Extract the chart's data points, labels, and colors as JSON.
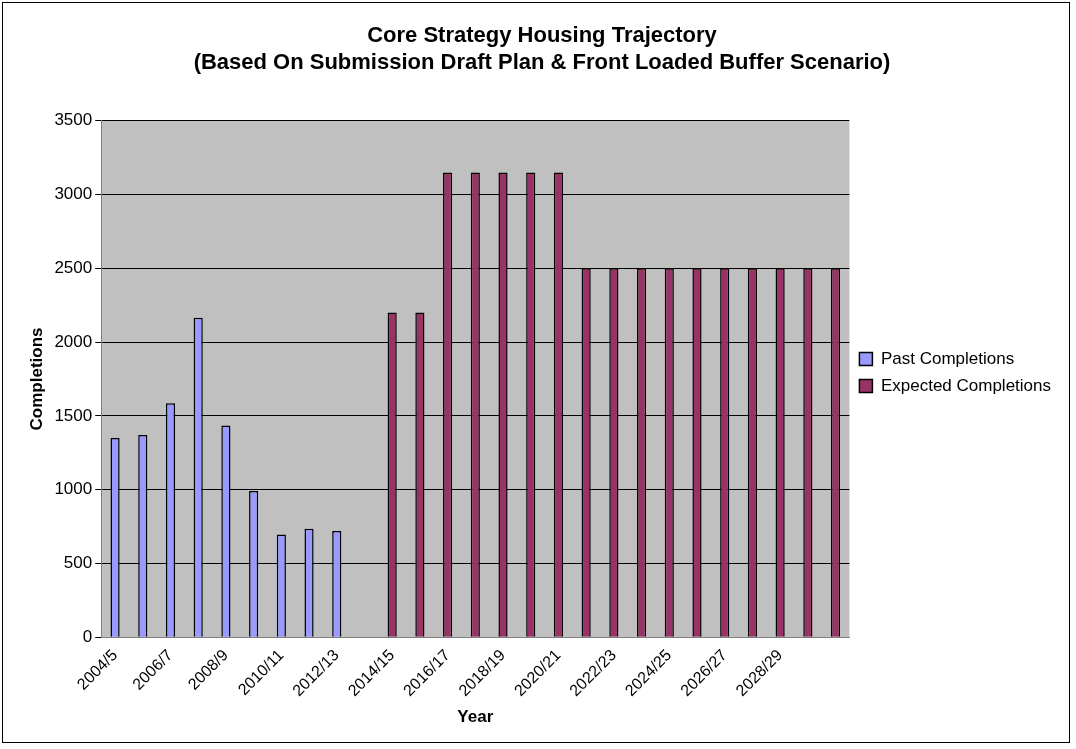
{
  "chart_data": {
    "type": "bar",
    "title": "Core Strategy Housing Trajectory\n(Based On Submission Draft Plan & Front Loaded Buffer Scenario)",
    "xlabel": "Year",
    "ylabel": "Completions",
    "categories": [
      "2004/5",
      null,
      "2006/7",
      null,
      "2008/9",
      null,
      "2010/11",
      null,
      "2012/13",
      null,
      "2014/15",
      null,
      "2016/17",
      null,
      "2018/19",
      null,
      "2020/21",
      null,
      "2022/23",
      null,
      "2024/25",
      null,
      "2026/27",
      null,
      "2028/29",
      null,
      null
    ],
    "series": [
      {
        "name": "Past Completions",
        "color": "#9999ff",
        "values": [
          1350,
          1370,
          1585,
          2165,
          1435,
          990,
          695,
          735,
          720,
          null,
          null,
          null,
          null,
          null,
          null,
          null,
          null,
          null,
          null,
          null,
          null,
          null,
          null,
          null,
          null,
          null,
          null
        ]
      },
      {
        "name": "Expected Completions",
        "color": "#993366",
        "values": [
          null,
          null,
          null,
          null,
          null,
          null,
          null,
          null,
          null,
          null,
          2200,
          2200,
          3150,
          3150,
          3150,
          3150,
          3150,
          2500,
          2500,
          2500,
          2500,
          2500,
          2500,
          2500,
          2500,
          2500,
          2500
        ]
      }
    ],
    "ylim": [
      0,
      3500
    ],
    "yticks": [
      0,
      500,
      1000,
      1500,
      2000,
      2500,
      3000,
      3500
    ],
    "grid": "y",
    "legend": "right"
  }
}
